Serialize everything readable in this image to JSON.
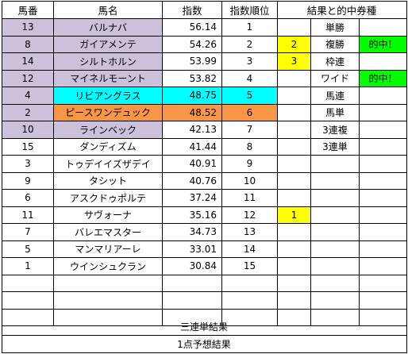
{
  "headers": {
    "horse_no": "馬番",
    "horse_name": "馬名",
    "index": "指数",
    "index_rank": "指数順位",
    "result_bet": "結果と的中券種"
  },
  "rows": [
    {
      "no": "13",
      "name": "バルナバ",
      "index": "56.14",
      "rank": "1",
      "res": "",
      "bet": "単勝",
      "hit": ""
    },
    {
      "no": "8",
      "name": "ガイアメンテ",
      "index": "54.26",
      "rank": "2",
      "res": "2",
      "bet": "複勝",
      "hit": "的中！"
    },
    {
      "no": "14",
      "name": "シルトホルン",
      "index": "53.99",
      "rank": "3",
      "res": "3",
      "bet": "枠連",
      "hit": ""
    },
    {
      "no": "12",
      "name": "マイネルモーント",
      "index": "53.82",
      "rank": "4",
      "res": "",
      "bet": "ワイド",
      "hit": "的中！"
    },
    {
      "no": "4",
      "name": "リビアングラス",
      "index": "48.75",
      "rank": "5",
      "res": "",
      "bet": "馬連",
      "hit": ""
    },
    {
      "no": "2",
      "name": "ピースワンデュック",
      "index": "48.52",
      "rank": "6",
      "res": "",
      "bet": "馬単",
      "hit": ""
    },
    {
      "no": "10",
      "name": "ラインベック",
      "index": "42.13",
      "rank": "7",
      "res": "",
      "bet": "3連複",
      "hit": ""
    },
    {
      "no": "15",
      "name": "ダンディズム",
      "index": "41.44",
      "rank": "8",
      "res": "",
      "bet": "3連単",
      "hit": ""
    },
    {
      "no": "3",
      "name": "トゥデイイズザデイ",
      "index": "40.91",
      "rank": "9",
      "res": "",
      "bet": "",
      "hit": ""
    },
    {
      "no": "9",
      "name": "タシット",
      "index": "40.76",
      "rank": "10",
      "res": "",
      "bet": "",
      "hit": ""
    },
    {
      "no": "6",
      "name": "アスクドゥポルテ",
      "index": "37.24",
      "rank": "11",
      "res": "",
      "bet": "",
      "hit": ""
    },
    {
      "no": "11",
      "name": "サヴォーナ",
      "index": "35.16",
      "rank": "12",
      "res": "1",
      "bet": "",
      "hit": ""
    },
    {
      "no": "7",
      "name": "バレエマスター",
      "index": "34.73",
      "rank": "13",
      "res": "",
      "bet": "",
      "hit": ""
    },
    {
      "no": "5",
      "name": "マンマリアーレ",
      "index": "33.01",
      "rank": "14",
      "res": "",
      "bet": "",
      "hit": ""
    },
    {
      "no": "1",
      "name": "ウインシュクラン",
      "index": "30.84",
      "rank": "15",
      "res": "",
      "bet": "",
      "hit": ""
    },
    {
      "no": "",
      "name": "",
      "index": "",
      "rank": "",
      "res": "",
      "bet": "",
      "hit": ""
    },
    {
      "no": "",
      "name": "",
      "index": "",
      "rank": "",
      "res": "",
      "bet": "",
      "hit": ""
    },
    {
      "no": "",
      "name": "",
      "index": "",
      "rank": "",
      "res": "",
      "bet": "",
      "hit": ""
    }
  ],
  "footer": {
    "trifecta_result": "三連単結果",
    "one_point_result": "1点予想結果"
  },
  "colors": {
    "purple_fill": "#ccc0da",
    "cyan_fill": "#00ffff",
    "orange_fill": "#f79646",
    "yellow_fill": "#ffff00",
    "green_fill": "#00ff00",
    "grid_line": "#000000"
  },
  "highlights": {
    "purple_rows": [
      0,
      1,
      2,
      3,
      4,
      5,
      6
    ],
    "cyan_row": 4,
    "orange_row": 5,
    "yellow_result_rows": [
      1,
      2,
      11
    ],
    "green_hit_rows": [
      1,
      3
    ]
  }
}
